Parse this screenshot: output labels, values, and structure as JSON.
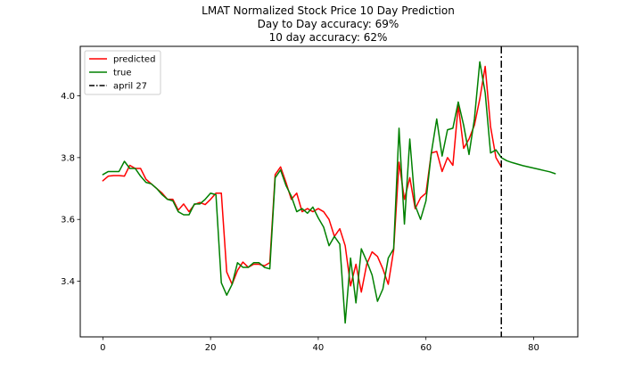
{
  "chart_data": {
    "type": "line",
    "title": "LMAT Normalized Stock Price 10 Day Prediction",
    "subtitle_lines": [
      "Day to Day accuracy: 69%",
      "10 day accuracy: 62%"
    ],
    "xlabel": "",
    "ylabel": "",
    "xlim": [
      -4.2,
      88.2
    ],
    "ylim": [
      3.22,
      4.16
    ],
    "x_ticks": [
      0,
      20,
      40,
      60,
      80
    ],
    "y_ticks": [
      3.4,
      3.6,
      3.8,
      4.0
    ],
    "x_tick_labels": [
      "0",
      "20",
      "40",
      "60",
      "80"
    ],
    "y_tick_labels": [
      "3.4",
      "3.6",
      "3.8",
      "4.0"
    ],
    "grid": false,
    "legend_position": "top-left",
    "series": [
      {
        "name": "predicted",
        "color": "#ff0000",
        "x": [
          0,
          1,
          2,
          3,
          4,
          5,
          6,
          7,
          8,
          9,
          10,
          11,
          12,
          13,
          14,
          15,
          16,
          17,
          18,
          19,
          20,
          21,
          22,
          23,
          24,
          25,
          26,
          27,
          28,
          29,
          30,
          31,
          32,
          33,
          34,
          35,
          36,
          37,
          38,
          39,
          40,
          41,
          42,
          43,
          44,
          45,
          46,
          47,
          48,
          49,
          50,
          51,
          52,
          53,
          54,
          55,
          56,
          57,
          58,
          59,
          60,
          61,
          62,
          63,
          64,
          65,
          66,
          67,
          68,
          69,
          70,
          71,
          72,
          73,
          74
        ],
        "values": [
          3.725,
          3.74,
          3.742,
          3.742,
          3.74,
          3.775,
          3.765,
          3.765,
          3.73,
          3.715,
          3.7,
          3.685,
          3.665,
          3.665,
          3.63,
          3.65,
          3.625,
          3.648,
          3.655,
          3.648,
          3.665,
          3.685,
          3.685,
          3.43,
          3.39,
          3.435,
          3.462,
          3.445,
          3.455,
          3.455,
          3.45,
          3.46,
          3.745,
          3.77,
          3.72,
          3.665,
          3.685,
          3.625,
          3.635,
          3.625,
          3.635,
          3.625,
          3.6,
          3.545,
          3.57,
          3.515,
          3.385,
          3.455,
          3.365,
          3.455,
          3.495,
          3.48,
          3.44,
          3.39,
          3.5,
          3.785,
          3.665,
          3.735,
          3.635,
          3.67,
          3.685,
          3.815,
          3.82,
          3.755,
          3.8,
          3.775,
          3.97,
          3.83,
          3.86,
          3.905,
          3.99,
          4.095,
          3.9,
          3.8,
          3.77
        ]
      },
      {
        "name": "true",
        "color": "#008000",
        "x": [
          0,
          1,
          2,
          3,
          4,
          5,
          6,
          7,
          8,
          9,
          10,
          11,
          12,
          13,
          14,
          15,
          16,
          17,
          18,
          19,
          20,
          21,
          22,
          23,
          24,
          25,
          26,
          27,
          28,
          29,
          30,
          31,
          32,
          33,
          34,
          35,
          36,
          37,
          38,
          39,
          40,
          41,
          42,
          43,
          44,
          45,
          46,
          47,
          48,
          49,
          50,
          51,
          52,
          53,
          54,
          55,
          56,
          57,
          58,
          59,
          60,
          61,
          62,
          63,
          64,
          65,
          66,
          67,
          68,
          69,
          70,
          71,
          72,
          73,
          74,
          75,
          76,
          77,
          78,
          79,
          80,
          81,
          82,
          83,
          84
        ],
        "values": [
          3.745,
          3.755,
          3.755,
          3.755,
          3.788,
          3.765,
          3.765,
          3.74,
          3.72,
          3.715,
          3.7,
          3.68,
          3.665,
          3.66,
          3.625,
          3.615,
          3.615,
          3.65,
          3.65,
          3.665,
          3.685,
          3.68,
          3.395,
          3.355,
          3.39,
          3.46,
          3.445,
          3.445,
          3.46,
          3.46,
          3.445,
          3.44,
          3.735,
          3.76,
          3.71,
          3.675,
          3.625,
          3.635,
          3.62,
          3.64,
          3.605,
          3.575,
          3.515,
          3.545,
          3.52,
          3.265,
          3.475,
          3.33,
          3.505,
          3.465,
          3.42,
          3.335,
          3.375,
          3.475,
          3.505,
          3.895,
          3.585,
          3.86,
          3.645,
          3.6,
          3.66,
          3.815,
          3.925,
          3.805,
          3.89,
          3.895,
          3.98,
          3.905,
          3.81,
          3.925,
          4.11,
          4.01,
          3.815,
          3.825,
          3.8,
          3.79,
          3.784,
          3.779,
          3.774,
          3.77,
          3.766,
          3.762,
          3.758,
          3.754,
          3.748
        ]
      }
    ],
    "vline": {
      "x": 74,
      "label": "april 27",
      "color": "#000000",
      "style": "dash-dot"
    }
  }
}
